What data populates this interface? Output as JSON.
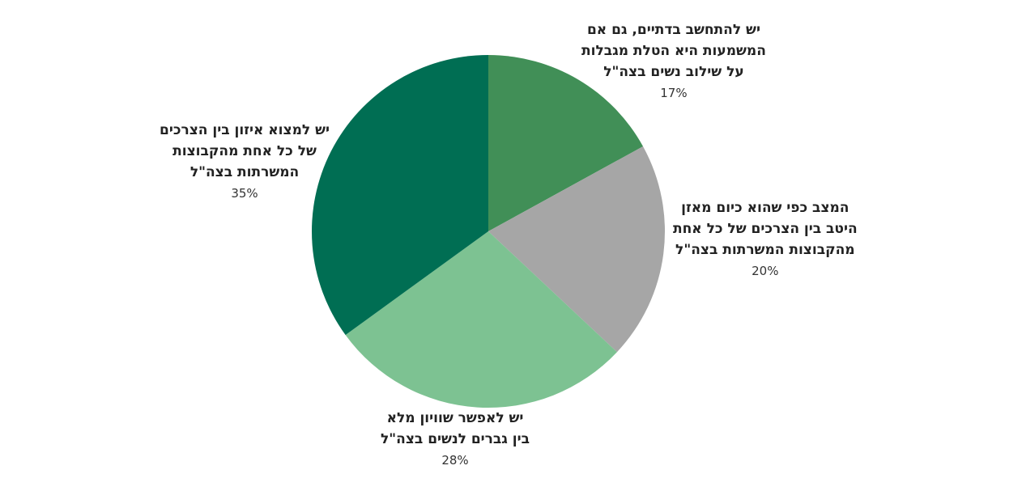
{
  "chart_data": {
    "type": "pie",
    "title": "",
    "start_angle_deg": 0,
    "direction": "clockwise",
    "slices": [
      {
        "lines": [
          "יש להתחשב בדתיים, גם אם",
          "המשמעות היא הטלת מגבלות",
          "על שילוב נשים בצה\"ל"
        ],
        "value": 17,
        "label": "17%",
        "color": "#418f57"
      },
      {
        "lines": [
          "המצב כפי שהוא כיום מאזן",
          "היטב בין הצרכים של כל אחת",
          "מהקבוצות המשרתות בצה\"ל"
        ],
        "value": 20,
        "label": "20%",
        "color": "#a6a6a6"
      },
      {
        "lines": [
          "יש לאפשר שוויון מלא",
          "בין גברים לנשים בצה\"ל"
        ],
        "value": 28,
        "label": "28%",
        "color": "#7dc292"
      },
      {
        "lines": [
          "יש למצוא איזון בין הצרכים",
          "של כל אחת מהקבוצות",
          "המשרתות בצה\"ל"
        ],
        "value": 35,
        "label": "35%",
        "color": "#006e53"
      }
    ]
  }
}
